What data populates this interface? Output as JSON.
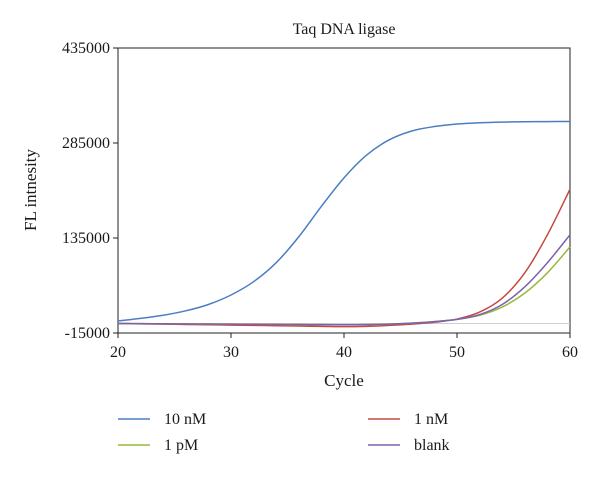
{
  "chart_data": {
    "type": "line",
    "title": "Taq DNA ligase",
    "xlabel": "Cycle",
    "ylabel": "FL intnesity",
    "xlim": [
      20,
      60
    ],
    "ylim": [
      -15000,
      435000
    ],
    "xticks": [
      20,
      30,
      40,
      50,
      60
    ],
    "xtick_labels": [
      "20",
      "30",
      "40",
      "50",
      "60"
    ],
    "yticks": [
      -15000,
      135000,
      285000,
      435000
    ],
    "ytick_labels": [
      "-15000",
      "135000",
      "285000",
      "435000"
    ],
    "grid": false,
    "legend_position": "bottom",
    "x": [
      20,
      22,
      24,
      26,
      28,
      30,
      32,
      34,
      36,
      38,
      40,
      42,
      44,
      46,
      48,
      50,
      52,
      54,
      56,
      58,
      60
    ],
    "series": [
      {
        "name": "10 nM",
        "color": "#4a7ec2",
        "values": [
          4000,
          8000,
          13000,
          20000,
          30000,
          45000,
          66000,
          96000,
          137000,
          185000,
          230000,
          266000,
          290000,
          304000,
          311000,
          315000,
          317000,
          318000,
          318500,
          318800,
          319000
        ]
      },
      {
        "name": "1 nM",
        "color": "#c24a40",
        "values": [
          0,
          -500,
          -1000,
          -1500,
          -2000,
          -2500,
          -3000,
          -3500,
          -4000,
          -4500,
          -5000,
          -4500,
          -3000,
          -1000,
          2000,
          7000,
          18000,
          40000,
          80000,
          140000,
          212000
        ]
      },
      {
        "name": "1 pM",
        "color": "#9ab83a",
        "values": [
          0,
          -200,
          -400,
          -600,
          -800,
          -1000,
          -1200,
          -1400,
          -1600,
          -1800,
          -2000,
          -1800,
          -1000,
          500,
          3000,
          6500,
          13000,
          26000,
          48000,
          80000,
          121000
        ]
      },
      {
        "name": "blank",
        "color": "#7b62b0",
        "values": [
          0,
          -200,
          -400,
          -600,
          -800,
          -1000,
          -1200,
          -1400,
          -1600,
          -1800,
          -2000,
          -1800,
          -1000,
          500,
          3000,
          6500,
          14000,
          30000,
          58000,
          96000,
          140000
        ]
      }
    ]
  }
}
